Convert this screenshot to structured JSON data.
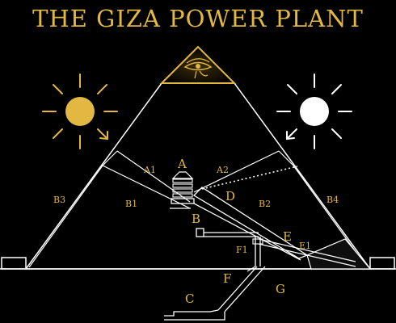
{
  "title": "THE GIZA POWER PLANT",
  "colors": {
    "background": "#000000",
    "gold": "#e2b843",
    "line": "#ffffff",
    "sun_left": "#e2b843",
    "sun_right": "#ffffff",
    "capstone": "#000000"
  },
  "icons": {
    "capstone": "eye-of-horus-icon",
    "sun_left": "sun-icon",
    "sun_right": "sun-icon"
  },
  "labels": {
    "A": "A",
    "A1": "A1",
    "A2": "A2",
    "B": "B",
    "B1": "B1",
    "B2": "B2",
    "B3": "B3",
    "B4": "B4",
    "C": "C",
    "D": "D",
    "E": "E",
    "E1": "E1",
    "F": "F",
    "F1": "F1",
    "G": "G"
  }
}
